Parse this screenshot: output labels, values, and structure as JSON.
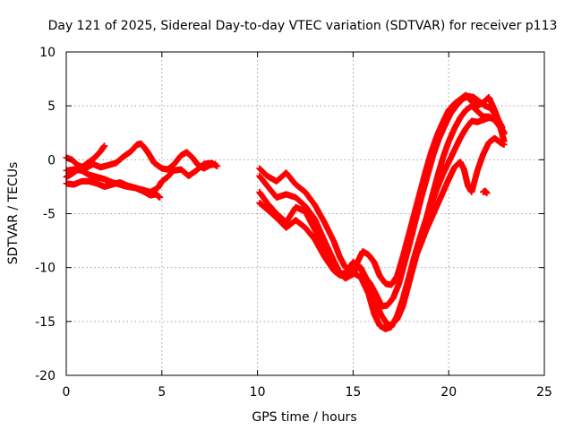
{
  "chart_data": {
    "type": "scatter",
    "title": "Day 121 of 2025, Sidereal Day-to-day VTEC variation (SDTVAR) for receiver p113",
    "xlabel": "GPS time / hours",
    "ylabel": "SDTVAR / TECUs",
    "xlim": [
      0,
      25
    ],
    "ylim": [
      -20,
      10
    ],
    "xticks": [
      "0",
      "5",
      "10",
      "15",
      "20",
      "25"
    ],
    "yticks": [
      "-20",
      "-15",
      "-10",
      "-5",
      "0",
      "5",
      "10"
    ],
    "xtick_values": [
      0,
      5,
      10,
      15,
      20,
      25
    ],
    "ytick_values": [
      -20,
      -15,
      -10,
      -5,
      0,
      5,
      10
    ],
    "grid": true,
    "marker": "plus",
    "color": "#ff0000",
    "series": [
      {
        "x": [
          0.0,
          0.3,
          0.6,
          0.9,
          1.2,
          1.5,
          1.8,
          2.0
        ],
        "y": [
          -1.6,
          -1.3,
          -0.9,
          -0.6,
          -0.2,
          0.2,
          0.8,
          1.3
        ]
      },
      {
        "x": [
          0.0,
          0.3,
          0.6,
          1.0,
          1.4,
          1.8,
          2.2,
          2.6,
          3.0,
          3.4,
          3.7,
          3.9,
          4.1,
          4.3,
          4.6,
          5.0,
          5.3,
          5.6,
          6.0,
          6.3,
          6.6,
          6.9,
          7.2,
          7.5,
          7.8
        ],
        "y": [
          0.2,
          0.0,
          -0.5,
          -0.8,
          -0.4,
          -0.7,
          -0.5,
          -0.3,
          0.3,
          0.8,
          1.4,
          1.5,
          1.1,
          0.6,
          -0.3,
          -0.8,
          -0.9,
          -0.5,
          0.4,
          0.7,
          0.2,
          -0.5,
          -0.8,
          -0.5,
          -0.4
        ]
      },
      {
        "x": [
          0.0,
          0.4,
          0.8,
          1.2,
          1.6,
          2.0,
          2.4,
          2.8,
          3.2,
          3.6,
          4.0,
          4.4,
          4.8,
          5.0,
          5.3,
          5.6,
          6.0,
          6.4,
          6.8,
          7.2,
          7.6,
          7.9
        ],
        "y": [
          -1.0,
          -0.9,
          -1.0,
          -1.4,
          -1.6,
          -1.8,
          -2.1,
          -2.3,
          -2.5,
          -2.6,
          -2.8,
          -3.0,
          -2.6,
          -2.0,
          -1.6,
          -1.0,
          -0.9,
          -1.5,
          -1.0,
          -0.4,
          -0.3,
          -0.6
        ]
      },
      {
        "x": [
          0.0,
          0.4,
          0.8,
          1.2,
          1.6,
          2.0,
          2.4,
          2.8,
          3.2,
          3.6,
          4.0,
          4.4,
          4.7,
          4.9
        ],
        "y": [
          -2.2,
          -2.3,
          -2.0,
          -2.0,
          -2.2,
          -2.5,
          -2.3,
          -2.1,
          -2.4,
          -2.6,
          -2.9,
          -3.3,
          -3.2,
          -3.5
        ]
      },
      {
        "x": [
          10.1,
          10.5,
          11.0,
          11.5,
          12.0,
          12.5,
          13.0,
          13.5,
          14.0,
          14.3,
          14.6,
          14.9,
          15.2,
          15.5,
          15.8,
          16.1,
          16.4,
          16.7,
          17.0,
          17.3,
          17.6,
          17.9,
          18.2,
          18.5,
          18.8,
          19.1,
          19.4,
          19.7,
          20.0,
          20.3,
          20.6,
          20.9,
          21.2,
          21.5,
          21.8,
          22.1,
          22.4,
          22.7,
          22.9
        ],
        "y": [
          -0.8,
          -1.5,
          -2.0,
          -1.2,
          -2.3,
          -3.0,
          -4.2,
          -5.8,
          -7.6,
          -9.0,
          -10.0,
          -10.2,
          -9.6,
          -8.5,
          -8.8,
          -9.5,
          -10.8,
          -11.5,
          -11.6,
          -10.8,
          -9.0,
          -7.0,
          -5.0,
          -3.0,
          -1.0,
          0.8,
          2.3,
          3.5,
          4.6,
          5.2,
          5.6,
          6.0,
          5.4,
          5.0,
          5.3,
          5.8,
          4.6,
          3.2,
          2.4
        ]
      },
      {
        "x": [
          10.1,
          10.5,
          11.0,
          11.5,
          12.0,
          12.5,
          13.0,
          13.5,
          14.0,
          14.3,
          14.6,
          15.0,
          15.3,
          15.6,
          15.9,
          16.2,
          16.5,
          16.8,
          17.1,
          17.4,
          17.7,
          18.0,
          18.3,
          18.6,
          18.9,
          19.2,
          19.5,
          19.8,
          20.1,
          20.4,
          20.7,
          21.0,
          21.3,
          21.6,
          21.9,
          22.2,
          22.5,
          22.8
        ],
        "y": [
          -1.5,
          -2.4,
          -3.5,
          -3.2,
          -3.5,
          -4.3,
          -5.5,
          -7.5,
          -9.4,
          -10.5,
          -11.0,
          -10.6,
          -9.8,
          -10.8,
          -11.5,
          -12.5,
          -13.6,
          -13.5,
          -12.8,
          -11.5,
          -9.5,
          -7.5,
          -5.4,
          -3.3,
          -1.4,
          0.5,
          2.0,
          3.2,
          4.3,
          5.0,
          5.6,
          5.9,
          5.8,
          5.4,
          5.0,
          4.8,
          4.0,
          3.0
        ]
      },
      {
        "x": [
          10.1,
          10.5,
          11.0,
          11.5,
          12.0,
          12.5,
          13.0,
          13.5,
          14.0,
          14.3,
          14.6,
          15.0,
          15.4,
          15.8,
          16.2,
          16.5,
          16.8,
          17.0,
          17.3,
          17.6,
          17.9,
          18.2,
          18.5,
          18.8,
          19.1,
          19.4,
          19.7,
          20.0,
          20.3,
          20.6,
          20.9,
          21.2,
          21.5,
          21.8,
          22.1,
          22.4,
          22.7,
          22.9
        ],
        "y": [
          -3.0,
          -4.0,
          -5.0,
          -5.8,
          -4.4,
          -4.8,
          -6.5,
          -8.4,
          -10.0,
          -10.6,
          -10.5,
          -9.5,
          -10.0,
          -11.4,
          -13.4,
          -14.5,
          -15.3,
          -15.3,
          -14.8,
          -13.6,
          -11.6,
          -9.6,
          -7.6,
          -5.6,
          -3.6,
          -1.6,
          0.2,
          1.7,
          2.9,
          3.9,
          4.6,
          5.0,
          4.5,
          4.0,
          4.0,
          3.7,
          3.0,
          2.5
        ]
      },
      {
        "x": [
          10.1,
          10.5,
          11.0,
          11.5,
          12.0,
          12.5,
          13.0,
          13.5,
          14.0,
          14.3,
          14.6,
          15.0,
          15.4,
          15.8,
          16.1,
          16.4,
          16.7,
          17.0,
          17.3,
          17.6,
          17.9,
          18.2,
          18.5,
          18.8,
          19.1,
          19.4,
          19.7,
          20.0,
          20.3,
          20.6,
          20.9,
          21.2,
          21.5,
          21.8,
          22.1,
          22.4,
          22.7,
          22.9
        ],
        "y": [
          -4.0,
          -4.6,
          -5.4,
          -6.3,
          -5.6,
          -6.3,
          -7.4,
          -9.0,
          -10.3,
          -10.7,
          -10.8,
          -10.5,
          -10.9,
          -12.4,
          -14.3,
          -15.4,
          -15.7,
          -15.5,
          -14.5,
          -12.9,
          -11.0,
          -9.0,
          -7.2,
          -5.6,
          -4.1,
          -2.6,
          -1.3,
          -0.2,
          0.9,
          2.0,
          2.9,
          3.6,
          3.5,
          3.7,
          3.9,
          3.8,
          3.0,
          1.7
        ]
      },
      {
        "x": [
          18.2,
          18.5,
          18.8,
          19.1,
          19.4,
          19.7,
          20.0,
          20.3,
          20.6,
          20.8,
          21.0,
          21.2,
          21.5,
          21.8,
          22.1,
          22.4,
          22.7,
          22.9
        ],
        "y": [
          -9.3,
          -8.0,
          -6.6,
          -5.4,
          -4.2,
          -3.0,
          -1.8,
          -0.7,
          -0.2,
          -0.9,
          -2.4,
          -3.0,
          -1.0,
          0.5,
          1.6,
          2.0,
          1.6,
          1.4
        ]
      },
      {
        "x": [
          21.8,
          21.9,
          22.0
        ],
        "y": [
          -3.0,
          -2.9,
          -3.1
        ]
      }
    ]
  }
}
